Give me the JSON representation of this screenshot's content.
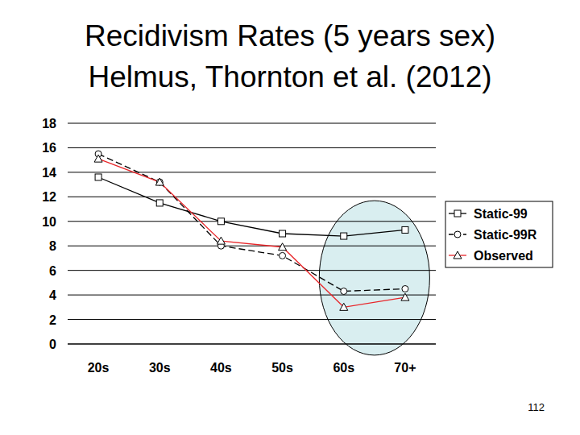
{
  "chart_data": {
    "type": "line",
    "title": "Recidivism Rates (5 years sex)",
    "subtitle": "Helmus, Thornton et al. (2012)",
    "annotation": "112",
    "categories": [
      "20s",
      "30s",
      "40s",
      "50s",
      "60s",
      "70+"
    ],
    "series": [
      {
        "name": "Static-99",
        "color": "#000000",
        "marker": "square",
        "line_style": "solid",
        "values": [
          13.6,
          11.5,
          10.0,
          9.0,
          8.8,
          9.3
        ]
      },
      {
        "name": "Static-99R",
        "color": "#000000",
        "marker": "circle",
        "line_style": "dashed",
        "values": [
          15.5,
          13.2,
          8.0,
          7.2,
          4.3,
          4.5
        ]
      },
      {
        "name": "Observed",
        "color": "#e8262a",
        "marker": "triangle",
        "line_style": "solid",
        "values": [
          15.1,
          13.2,
          8.4,
          7.9,
          3.0,
          3.8
        ]
      }
    ],
    "ylim": [
      0,
      18
    ],
    "yticks": [
      0,
      2,
      4,
      6,
      8,
      10,
      12,
      14,
      16,
      18
    ],
    "grid": true,
    "legend": "right"
  }
}
